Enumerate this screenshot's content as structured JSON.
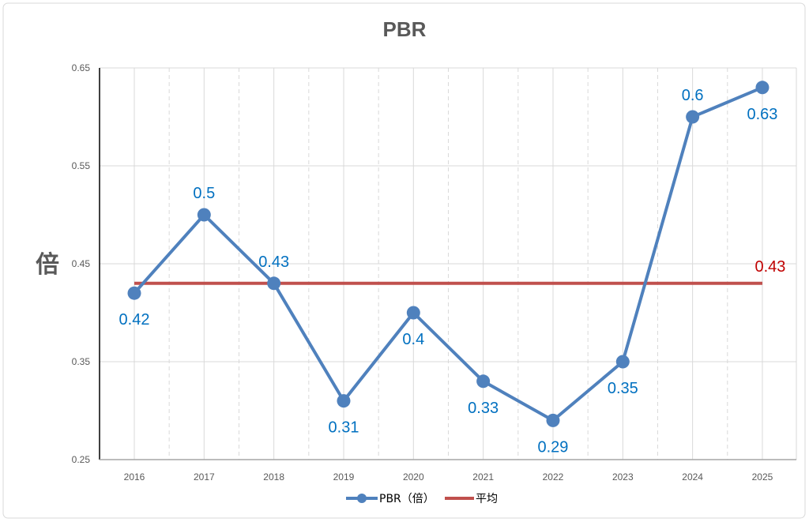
{
  "chart_data": {
    "type": "line",
    "title": "PBR",
    "ylabel": "倍",
    "xlabel": "",
    "ylim": [
      0.25,
      0.65
    ],
    "yticks": [
      "0.25",
      "0.35",
      "0.45",
      "0.55",
      "0.65"
    ],
    "categories": [
      "2016",
      "2017",
      "2018",
      "2019",
      "2020",
      "2021",
      "2022",
      "2023",
      "2024",
      "2025"
    ],
    "series": [
      {
        "name": "PBR（倍）",
        "values": [
          0.42,
          0.5,
          0.43,
          0.31,
          0.4,
          0.33,
          0.29,
          0.35,
          0.6,
          0.63
        ],
        "labels": [
          "0.42",
          "0.5",
          "0.43",
          "0.31",
          "0.4",
          "0.33",
          "0.29",
          "0.35",
          "0.6",
          "0.63"
        ],
        "color": "#4F81BD",
        "label_color": "#0070C0"
      },
      {
        "name": "平均",
        "values": [
          0.43,
          0.43,
          0.43,
          0.43,
          0.43,
          0.43,
          0.43,
          0.43,
          0.43,
          0.43
        ],
        "end_label": "0.43",
        "color": "#C0504D",
        "label_color": "#C00000"
      }
    ],
    "grid": true,
    "legend": "bottom"
  }
}
